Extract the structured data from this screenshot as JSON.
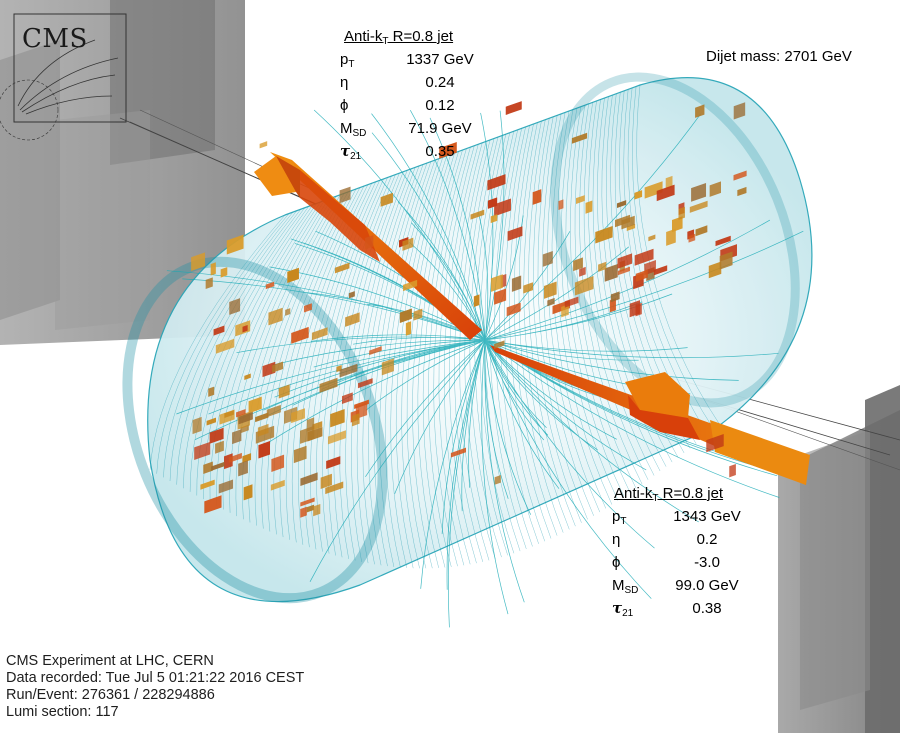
{
  "event": {
    "jet1": {
      "title": "Anti-k",
      "title_sub": "T",
      "title_rest": " R=0.8 jet",
      "rows": [
        {
          "label": "p",
          "label_sub": "T",
          "value": "1337 GeV"
        },
        {
          "label": "η",
          "label_sub": "",
          "value": "0.24"
        },
        {
          "label": "ϕ",
          "label_sub": "",
          "value": "0.12"
        },
        {
          "label": "M",
          "label_sub": "SD",
          "value": "71.9 GeV"
        },
        {
          "label": "τ",
          "label_sub": "21",
          "value": "0.35"
        }
      ]
    },
    "jet2": {
      "title": "Anti-k",
      "title_sub": "T",
      "title_rest": " R=0.8 jet",
      "rows": [
        {
          "label": "p",
          "label_sub": "T",
          "value": "1343 GeV"
        },
        {
          "label": "η",
          "label_sub": "",
          "value": "0.2"
        },
        {
          "label": "ϕ",
          "label_sub": "",
          "value": "-3.0"
        },
        {
          "label": "M",
          "label_sub": "SD",
          "value": "99.0 GeV"
        },
        {
          "label": "τ",
          "label_sub": "21",
          "value": "0.38"
        }
      ]
    },
    "dijet_mass": "Dijet mass: 2701 GeV",
    "info": [
      "CMS Experiment at LHC, CERN",
      "Data recorded: Tue Jul  5 01:21:22 2016 CEST",
      "Run/Event: 276361 / 228294886",
      "Lumi section: 117"
    ],
    "logo": "CMS"
  },
  "colors": {
    "tracker": "#2aa6b8",
    "tracker_light": "#d8eff3",
    "jet": "#e8860c",
    "jet_dark": "#d8400a",
    "hcal": "#7a7a7a",
    "text": "#000000"
  }
}
